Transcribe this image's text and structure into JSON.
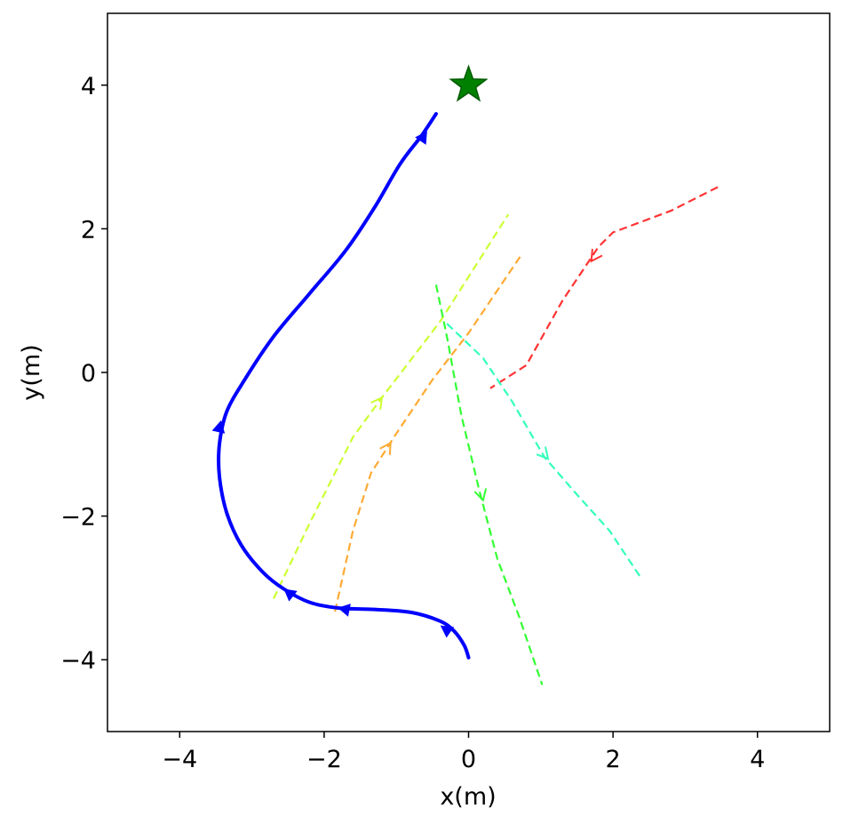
{
  "chart_data": {
    "type": "line",
    "title": "",
    "xlabel": "x(m)",
    "ylabel": "y(m)",
    "xlim": [
      -5,
      5
    ],
    "ylim": [
      -5,
      5
    ],
    "xticks": [
      -4,
      -2,
      0,
      2,
      4
    ],
    "yticks": [
      -4,
      -2,
      0,
      2,
      4
    ],
    "xtick_labels": [
      "−4",
      "−2",
      "0",
      "2",
      "4"
    ],
    "ytick_labels": [
      "−4",
      "−2",
      "0",
      "2",
      "4"
    ],
    "grid": false,
    "goal": {
      "x": 0.0,
      "y": 4.0,
      "marker": "star",
      "color": "#008000"
    },
    "robot_path": {
      "color": "#0000ff",
      "style": "solid",
      "points": [
        [
          0.0,
          -3.97
        ],
        [
          -0.06,
          -3.8
        ],
        [
          -0.2,
          -3.6
        ],
        [
          -0.4,
          -3.46
        ],
        [
          -0.8,
          -3.34
        ],
        [
          -1.3,
          -3.3
        ],
        [
          -1.8,
          -3.28
        ],
        [
          -2.2,
          -3.2
        ],
        [
          -2.55,
          -3.02
        ],
        [
          -2.85,
          -2.78
        ],
        [
          -3.15,
          -2.4
        ],
        [
          -3.35,
          -1.95
        ],
        [
          -3.45,
          -1.45
        ],
        [
          -3.45,
          -1.0
        ],
        [
          -3.35,
          -0.55
        ],
        [
          -3.1,
          -0.1
        ],
        [
          -2.7,
          0.5
        ],
        [
          -2.2,
          1.1
        ],
        [
          -1.7,
          1.7
        ],
        [
          -1.3,
          2.3
        ],
        [
          -0.95,
          2.9
        ],
        [
          -0.65,
          3.3
        ],
        [
          -0.45,
          3.6
        ]
      ],
      "arrows": [
        [
          -0.38,
          -3.53
        ],
        [
          -1.8,
          -3.28
        ],
        [
          -2.55,
          -3.02
        ],
        [
          -3.43,
          -0.68
        ],
        [
          -0.58,
          3.35
        ]
      ]
    },
    "agents": [
      {
        "color": "#ff3333",
        "points": [
          [
            3.45,
            2.58
          ],
          [
            2.8,
            2.25
          ],
          [
            2.0,
            1.95
          ],
          [
            1.8,
            1.75
          ],
          [
            1.3,
            1.0
          ],
          [
            0.8,
            0.1
          ],
          [
            0.3,
            -0.22
          ]
        ],
        "arrows": [
          [
            1.7,
            1.55
          ]
        ]
      },
      {
        "color": "#ffaa33",
        "points": [
          [
            -1.85,
            -3.33
          ],
          [
            -1.6,
            -2.2
          ],
          [
            -1.35,
            -1.4
          ],
          [
            -1.0,
            -0.85
          ],
          [
            -0.5,
            -0.1
          ],
          [
            0.0,
            0.55
          ],
          [
            0.72,
            1.62
          ]
        ],
        "arrows": [
          [
            -1.08,
            -0.98
          ]
        ]
      },
      {
        "color": "#ccff33",
        "points": [
          [
            -2.7,
            -3.15
          ],
          [
            -2.2,
            -2.1
          ],
          [
            -1.6,
            -0.9
          ],
          [
            -1.2,
            -0.35
          ],
          [
            -0.4,
            0.7
          ],
          [
            0.55,
            2.2
          ]
        ],
        "arrows": [
          [
            -1.2,
            -0.35
          ]
        ]
      },
      {
        "color": "#33ff33",
        "points": [
          [
            -0.45,
            1.22
          ],
          [
            -0.3,
            0.5
          ],
          [
            -0.1,
            -0.6
          ],
          [
            0.15,
            -1.65
          ],
          [
            0.4,
            -2.6
          ],
          [
            0.7,
            -3.4
          ],
          [
            1.02,
            -4.35
          ]
        ],
        "arrows": [
          [
            0.2,
            -1.78
          ]
        ]
      },
      {
        "color": "#33ffbb",
        "points": [
          [
            -0.3,
            0.68
          ],
          [
            0.2,
            0.2
          ],
          [
            0.6,
            -0.4
          ],
          [
            1.05,
            -1.18
          ],
          [
            1.5,
            -1.7
          ],
          [
            1.95,
            -2.2
          ],
          [
            2.4,
            -2.88
          ]
        ],
        "arrows": [
          [
            1.1,
            -1.2
          ]
        ]
      }
    ]
  }
}
